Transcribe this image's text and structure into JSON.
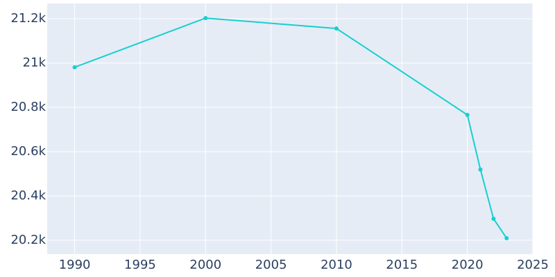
{
  "chart_data": {
    "type": "line",
    "x": [
      1990,
      2000,
      2010,
      2020,
      2021,
      2022,
      2023
    ],
    "series": [
      {
        "color": "#17cfcf",
        "values": [
          20981,
          21203,
          21156,
          20766,
          20519,
          20297,
          20209
        ]
      }
    ],
    "xlim": [
      1987.9,
      2025
    ],
    "xticks": [
      1990,
      1995,
      2000,
      2005,
      2010,
      2015,
      2020,
      2025
    ],
    "ylim": [
      20137,
      21269
    ],
    "yticks": [
      {
        "value": 20200,
        "label": "20.2k"
      },
      {
        "value": 20400,
        "label": "20.4k"
      },
      {
        "value": 20600,
        "label": "20.6k"
      },
      {
        "value": 20800,
        "label": "20.8k"
      },
      {
        "value": 21000,
        "label": "21k"
      },
      {
        "value": 21200,
        "label": "21.2k"
      }
    ],
    "grid": true,
    "background": "#e5ecf6"
  }
}
